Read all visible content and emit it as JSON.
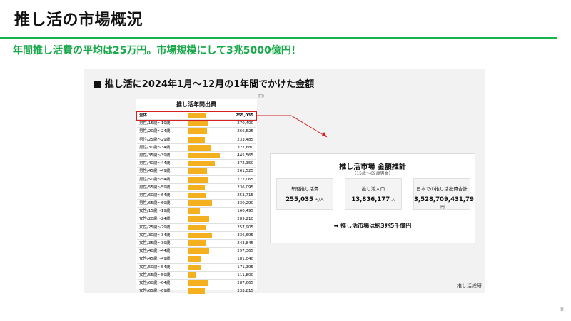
{
  "header": {
    "title": "推し活の市場概況",
    "subtitle": "年間推し活費の平均は25万円。市場規模にして3兆5000億円！",
    "page_number": "8"
  },
  "slide": {
    "heading": "■ 推し活に2024年1月～12月の1年間でかけた金額",
    "table": {
      "title": "推し活年間出費",
      "unit": "(円)",
      "bar_color": "#f5b020",
      "highlight_color": "#d62020",
      "rows": [
        {
          "label": "全体",
          "value": "255,035",
          "amount": 255035,
          "highlight": true
        },
        {
          "label": "男性/15歳～19歳",
          "value": "270,400",
          "amount": 270400
        },
        {
          "label": "男性/20歳～24歳",
          "value": "266,525",
          "amount": 266525
        },
        {
          "label": "男性/25歳～29歳",
          "value": "233,485",
          "amount": 233485
        },
        {
          "label": "男性/30歳～34歳",
          "value": "327,680",
          "amount": 327680
        },
        {
          "label": "男性/35歳～39歳",
          "value": "445,565",
          "amount": 445565
        },
        {
          "label": "男性/40歳～44歳",
          "value": "372,350",
          "amount": 372350
        },
        {
          "label": "男性/45歳～49歳",
          "value": "261,525",
          "amount": 261525
        },
        {
          "label": "男性/50歳～54歳",
          "value": "272,065",
          "amount": 272065
        },
        {
          "label": "男性/55歳～59歳",
          "value": "236,095",
          "amount": 236095
        },
        {
          "label": "男性/60歳～64歳",
          "value": "253,715",
          "amount": 253715
        },
        {
          "label": "男性/65歳～69歳",
          "value": "330,290",
          "amount": 330290
        },
        {
          "label": "女性/15歳～19歳",
          "value": "160,495",
          "amount": 160495
        },
        {
          "label": "女性/20歳～24歳",
          "value": "289,210",
          "amount": 289210
        },
        {
          "label": "女性/25歳～29歳",
          "value": "257,905",
          "amount": 257905
        },
        {
          "label": "女性/30歳～34歳",
          "value": "336,695",
          "amount": 336695
        },
        {
          "label": "女性/35歳～39歳",
          "value": "243,845",
          "amount": 243845
        },
        {
          "label": "女性/40歳～44歳",
          "value": "297,365",
          "amount": 297365
        },
        {
          "label": "女性/45歳～49歳",
          "value": "181,040",
          "amount": 181040
        },
        {
          "label": "女性/50歳～54歳",
          "value": "171,395",
          "amount": 171395
        },
        {
          "label": "女性/55歳～59歳",
          "value": "111,800",
          "amount": 111800
        },
        {
          "label": "女性/60歳～64歳",
          "value": "287,665",
          "amount": 287665
        },
        {
          "label": "女性/65歳～69歳",
          "value": "233,815",
          "amount": 233815
        }
      ]
    },
    "market": {
      "title": "推し活市場 金額推計",
      "subtitle": "（15歳～69歳男女）",
      "cards": [
        {
          "label": "年間推し活費",
          "value": "255,035",
          "unit": "円/人"
        },
        {
          "label": "推し活人口",
          "value": "13,836,177",
          "unit": "人"
        },
        {
          "label": "日本での推し活出費合計",
          "value": "3,528,709,431,79",
          "unit": "円"
        }
      ],
      "conclusion": "➡ 推し活市場は約3兆5千億円"
    },
    "source": "推し活総研"
  }
}
